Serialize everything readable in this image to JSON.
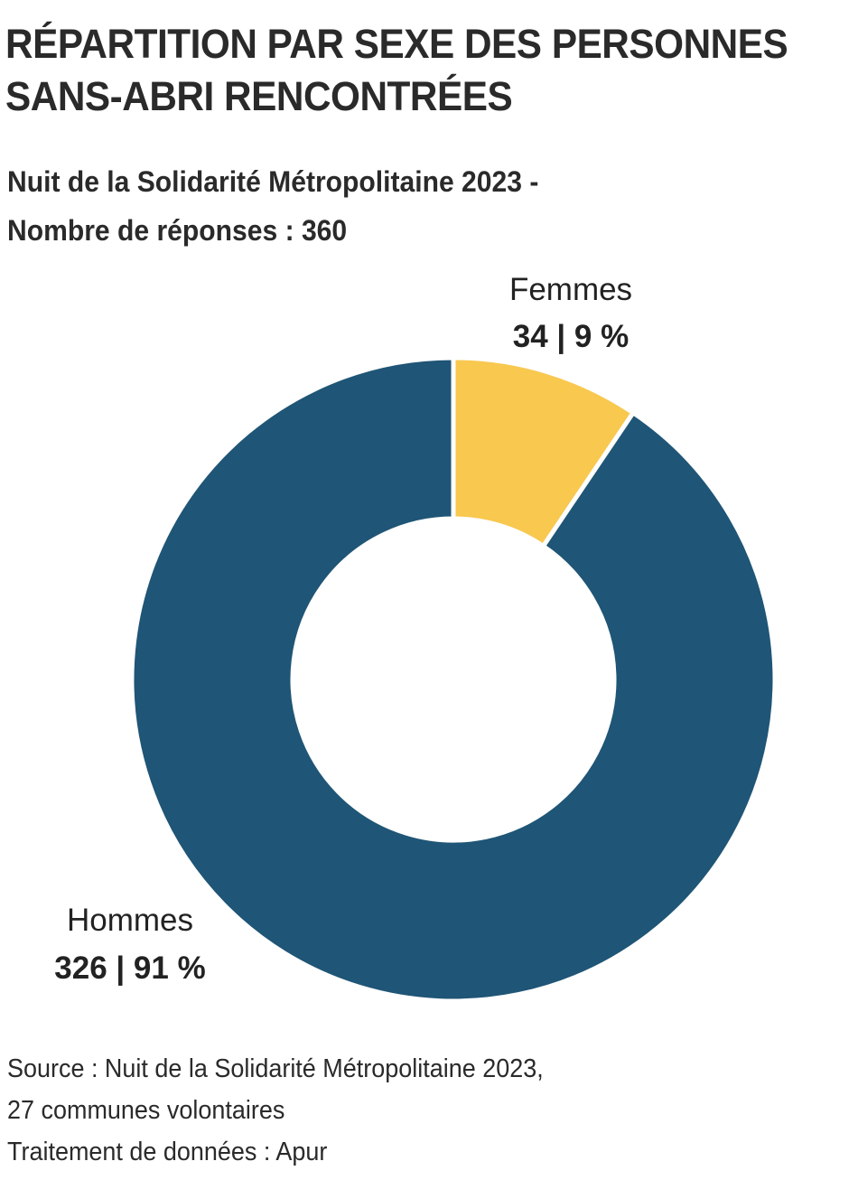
{
  "title": [
    "RÉPARTITION PAR SEXE DES PERSONNES",
    "SANS-ABRI RENCONTRÉES"
  ],
  "subtitle": [
    "Nuit de la Solidarité Métropolitaine 2023 -",
    "Nombre de réponses : 360"
  ],
  "chart_data": {
    "type": "pie",
    "style": "donut",
    "total": 360,
    "slices": [
      {
        "name": "Femmes",
        "count": 34,
        "percent": 9,
        "value_label": "34 | 9 %",
        "color": "#F8C84F"
      },
      {
        "name": "Hommes",
        "count": 326,
        "percent": 91,
        "value_label": "326 | 91 %",
        "color": "#1F5576"
      }
    ]
  },
  "source": [
    "Source : Nuit de la Solidarité Métropolitaine 2023,",
    "27 communes volontaires",
    "Traitement de données : Apur"
  ]
}
